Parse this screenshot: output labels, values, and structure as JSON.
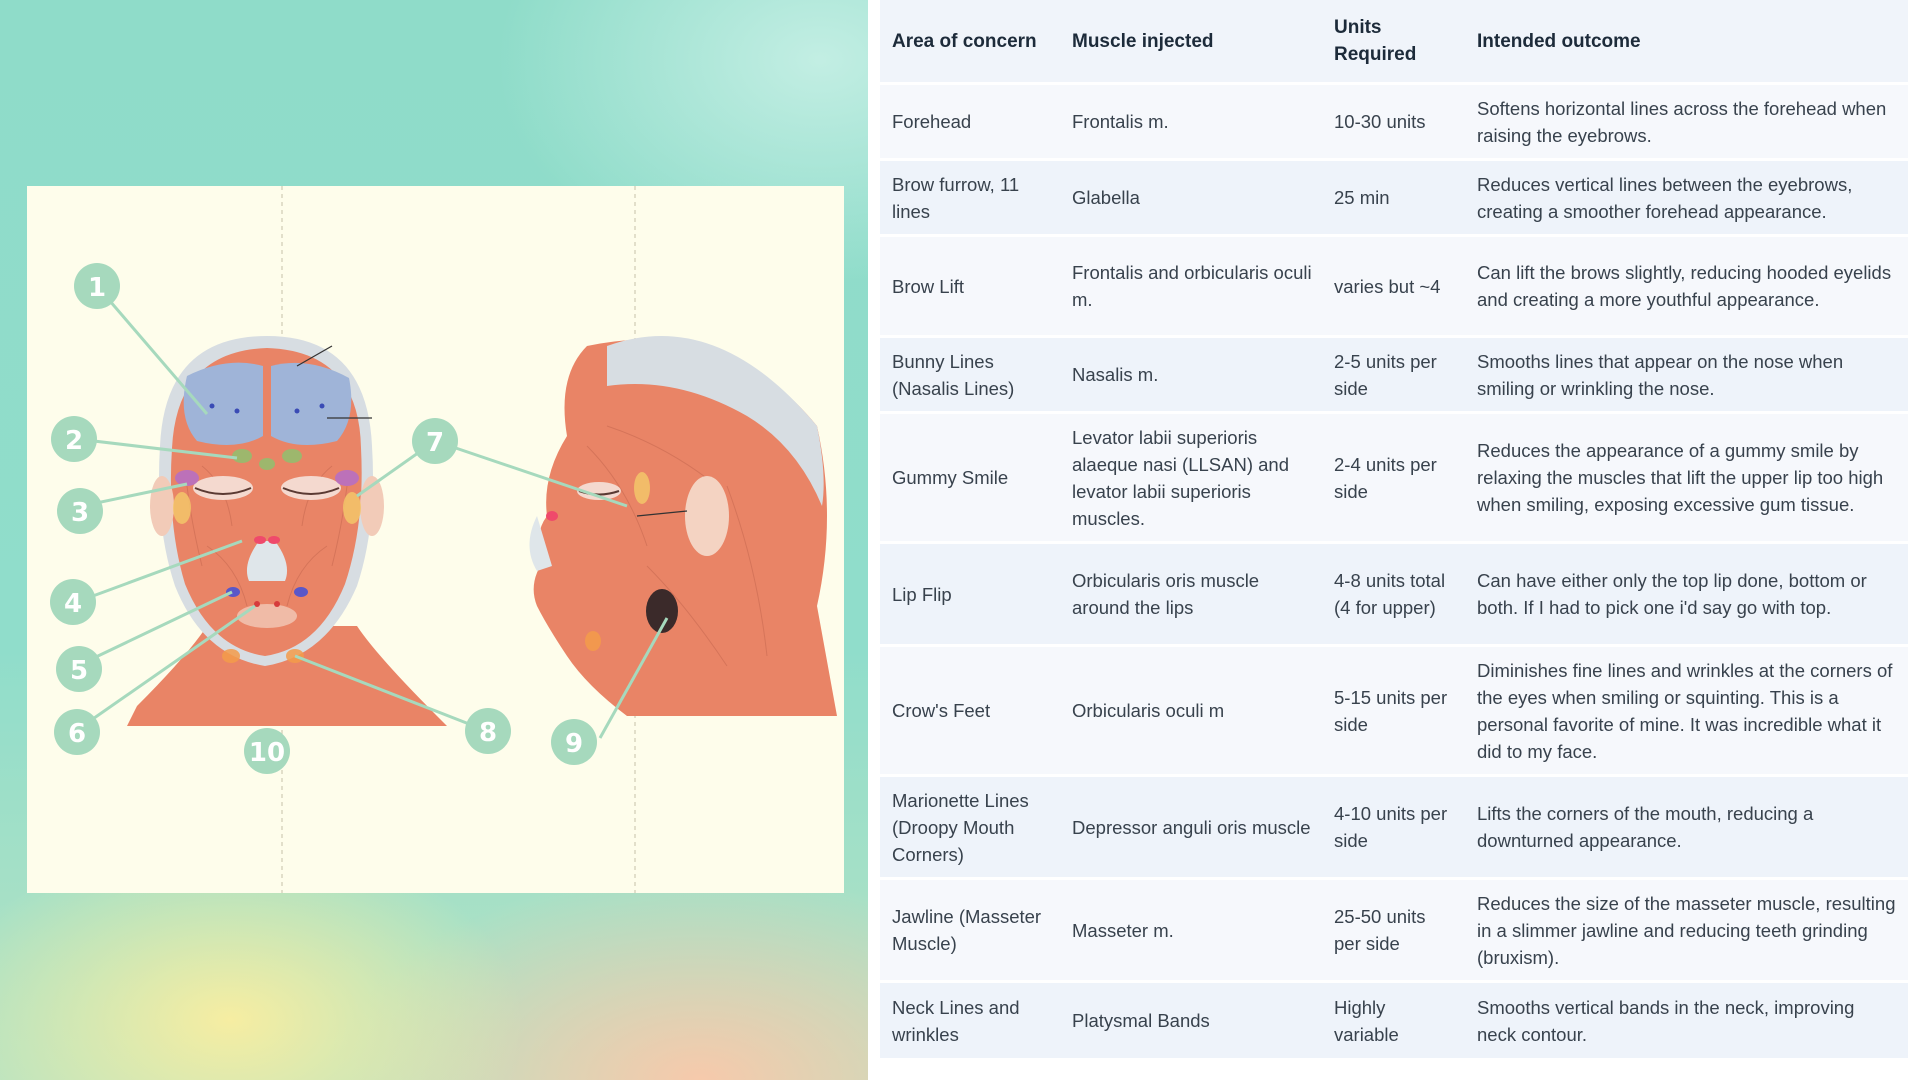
{
  "illustration": {
    "labels": [
      "1",
      "2",
      "3",
      "4",
      "5",
      "6",
      "7",
      "8",
      "9",
      "10"
    ]
  },
  "table": {
    "headers": [
      "Area of concern",
      "Muscle injected",
      "Units Required",
      "Intended outcome"
    ],
    "rows": [
      {
        "area": "Forehead",
        "muscle": "Frontalis m.",
        "units": "10-30 units",
        "outcome": "Softens horizontal lines across the forehead when raising the eyebrows."
      },
      {
        "area": "Brow furrow, 11 lines",
        "muscle": "Glabella",
        "units": "25 min",
        "outcome": "Reduces vertical lines between the eyebrows, creating a smoother forehead appearance."
      },
      {
        "area": "Brow Lift",
        "muscle": "Frontalis and orbicularis oculi m.",
        "units": "varies but ~4",
        "outcome": "Can lift the brows slightly, reducing hooded eyelids and creating a more youthful appearance."
      },
      {
        "area": "Bunny Lines (Nasalis Lines)",
        "muscle": "Nasalis m.",
        "units": "2-5 units per side",
        "outcome": "Smooths lines that appear on the nose when smiling or wrinkling the nose."
      },
      {
        "area": "Gummy Smile",
        "muscle": "Levator labii superioris alaeque nasi (LLSAN) and levator labii superioris muscles.",
        "units": "2-4 units per side",
        "outcome": "Reduces the appearance of a gummy smile by relaxing the muscles that lift the upper lip too high when smiling, exposing excessive gum tissue."
      },
      {
        "area": "Lip Flip",
        "muscle": "Orbicularis oris muscle around the lips",
        "units": "4-8 units total (4 for upper)",
        "outcome": "Can have either only the top lip done, bottom or both. If I had to pick one i'd say go with top."
      },
      {
        "area": "Crow's Feet",
        "muscle": "Orbicularis oculi m",
        "units": "5-15 units per side",
        "outcome": "Diminishes fine lines and wrinkles at the corners of the eyes when smiling or squinting. This is a personal favorite of mine. It was incredible what it did to my face."
      },
      {
        "area": "Marionette Lines (Droopy Mouth Corners)",
        "muscle": "Depressor anguli oris muscle",
        "units": "4-10 units per side",
        "outcome": "Lifts the corners of the mouth, reducing a downturned appearance."
      },
      {
        "area": "Jawline (Masseter Muscle)",
        "muscle": "Masseter m.",
        "units": "25-50 units per side",
        "outcome": "Reduces the size of the masseter muscle, resulting in a slimmer jawline and reducing teeth grinding (bruxism)."
      },
      {
        "area": "Neck Lines and wrinkles",
        "muscle": "Platysmal Bands",
        "units": "Highly variable",
        "outcome": "Smooths vertical bands in the neck, improving neck contour."
      }
    ]
  },
  "colors": {
    "muscle": "#e98466",
    "forehead_injection": "#9fb4d8",
    "marker": "#a6d9bd",
    "table_header_bg": "#f0f4fa",
    "text": "#38424d"
  }
}
